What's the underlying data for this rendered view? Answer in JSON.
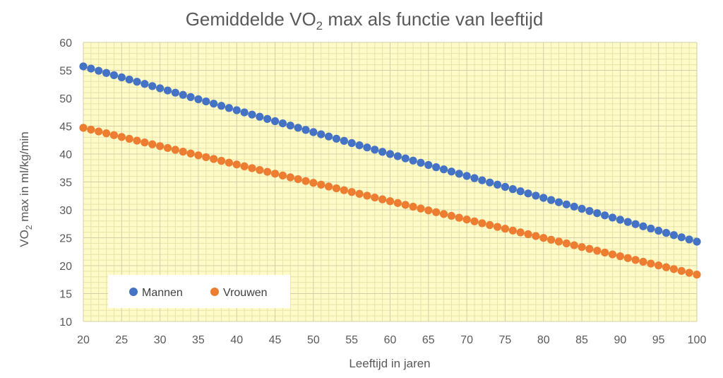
{
  "chart_data": {
    "type": "scatter",
    "title_main": "Gemiddelde VO",
    "title_sub": "2",
    "title_rest": " max als functie van leeftijd",
    "xlabel": "Leeftijd in jaren",
    "ylabel_main": "VO",
    "ylabel_sub": "2",
    "ylabel_rest": " max in ml/kg/min",
    "xlim": [
      20,
      100
    ],
    "ylim": [
      10,
      60
    ],
    "x_ticks": [
      "20",
      "25",
      "30",
      "35",
      "40",
      "45",
      "50",
      "55",
      "60",
      "65",
      "70",
      "75",
      "80",
      "85",
      "90",
      "95",
      "100"
    ],
    "y_ticks": [
      "10",
      "15",
      "20",
      "25",
      "30",
      "35",
      "40",
      "45",
      "50",
      "55",
      "60"
    ],
    "grid": true,
    "legend_position": "bottom-left",
    "plot_background": "#fffbc8",
    "series": [
      {
        "name": "Mannen",
        "color": "#4472c4",
        "x_start": 20,
        "x_end": 100,
        "x_step": 1,
        "y_start": 55.7,
        "y_end": 24.3
      },
      {
        "name": "Vrouwen",
        "color": "#ed7d31",
        "x_start": 20,
        "x_end": 100,
        "x_step": 1,
        "y_start": 44.7,
        "y_end": 18.4
      }
    ]
  }
}
